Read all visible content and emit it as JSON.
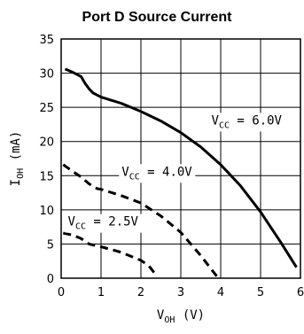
{
  "chart_data": {
    "type": "line",
    "title": "Port D Source Current",
    "xlabel": {
      "main": "V",
      "sub": "OH",
      "unit": "(V)"
    },
    "ylabel": {
      "main": "I",
      "sub": "OH",
      "unit": "(mA)"
    },
    "xlim": [
      0,
      6
    ],
    "ylim": [
      0,
      35
    ],
    "xticks": [
      0,
      1,
      2,
      3,
      4,
      5,
      6
    ],
    "yticks": [
      0,
      5,
      10,
      15,
      20,
      25,
      30,
      35
    ],
    "grid": true,
    "series": [
      {
        "label_main": "V",
        "label_sub": "CC",
        "label_value": "= 6.0V",
        "style": "solid",
        "x": [
          0.1,
          0.3,
          0.5,
          0.6,
          0.7,
          0.8,
          1.0,
          1.5,
          2.0,
          2.5,
          3.0,
          3.5,
          4.0,
          4.5,
          5.0,
          5.5,
          5.9
        ],
        "y": [
          30.6,
          30.1,
          29.5,
          28.5,
          27.7,
          27.1,
          26.5,
          25.6,
          24.4,
          23.0,
          21.3,
          19.2,
          16.6,
          13.5,
          9.7,
          5.3,
          1.6
        ]
      },
      {
        "label_main": "V",
        "label_sub": "CC",
        "label_value": "= 4.0V",
        "style": "dashed",
        "x": [
          0.05,
          0.3,
          0.5,
          0.7,
          0.9,
          1.0,
          1.5,
          2.0,
          2.5,
          3.0,
          3.5,
          3.9
        ],
        "y": [
          16.6,
          15.6,
          14.8,
          13.8,
          13.1,
          13.0,
          12.1,
          11.0,
          9.1,
          6.7,
          3.3,
          0.3
        ]
      },
      {
        "label_main": "V",
        "label_sub": "CC",
        "label_value": "= 2.5V",
        "style": "dashed",
        "x": [
          0.05,
          0.3,
          0.5,
          0.7,
          0.9,
          1.0,
          1.5,
          2.0,
          2.2,
          2.4
        ],
        "y": [
          6.6,
          6.3,
          5.8,
          5.0,
          4.7,
          4.6,
          3.8,
          2.6,
          1.8,
          0.3
        ]
      }
    ]
  }
}
